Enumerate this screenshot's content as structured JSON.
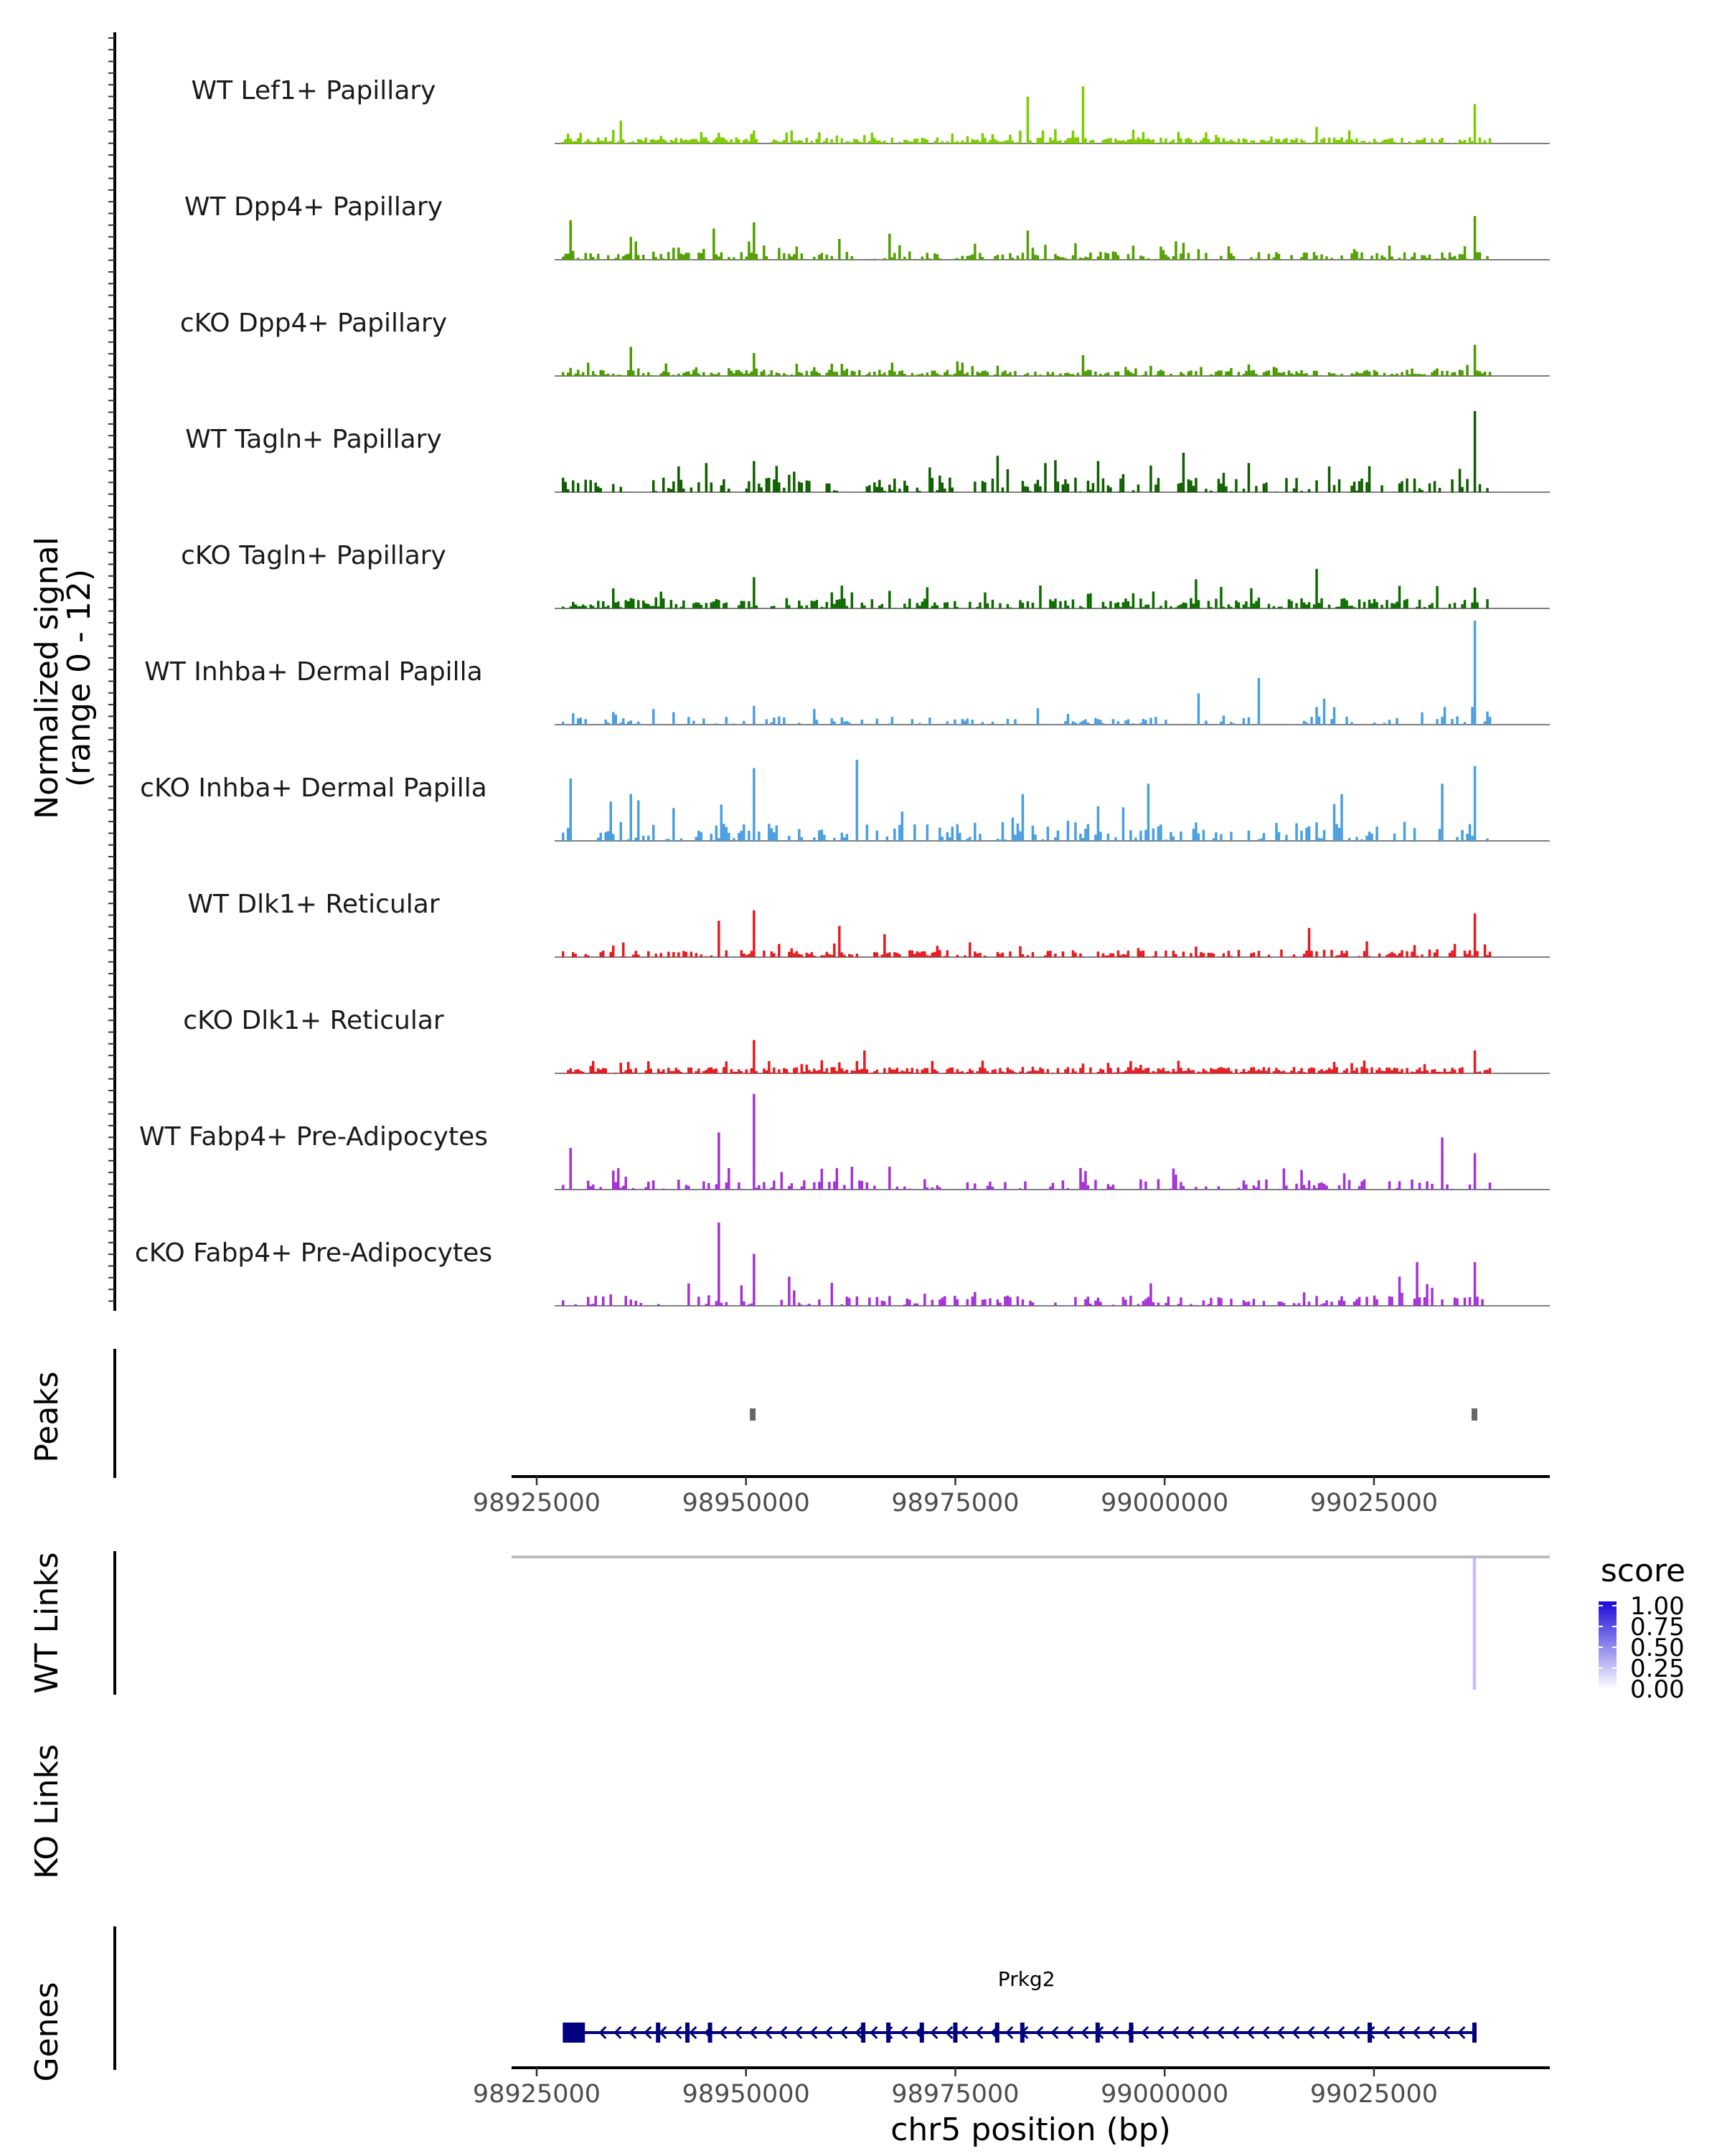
{
  "chart_data": {
    "type": "coverage-track",
    "shared_y_axis": {
      "label_line1": "Normalized signal",
      "label_line2": "(range 0 - 12)",
      "range": [
        0,
        12
      ]
    },
    "x_axis": {
      "chromosome": "chr5",
      "label": "chr5 position (bp)",
      "range": [
        98922000,
        99046000
      ],
      "ticks": [
        98925000,
        98950000,
        98975000,
        99000000,
        99025000
      ],
      "tick_labels": [
        "98925000",
        "98950000",
        "98975000",
        "99000000",
        "99025000"
      ]
    },
    "region_data_range": [
      98928000,
      99039000
    ],
    "tracks": [
      {
        "name": "WT Lef1+ Papillary",
        "color": "#7ccd00",
        "seed": 11,
        "density": 0.85,
        "base": 0.06,
        "peaks": [
          [
            98935000,
            0.22
          ],
          [
            98950800,
            0.12
          ],
          [
            98978000,
            0.1
          ],
          [
            98983500,
            0.45
          ],
          [
            98990000,
            0.55
          ],
          [
            98986800,
            0.14
          ],
          [
            99018000,
            0.16
          ],
          [
            99037000,
            0.38
          ]
        ]
      },
      {
        "name": "WT Dpp4+ Papillary",
        "color": "#52a000",
        "seed": 23,
        "density": 0.55,
        "base": 0.08,
        "peaks": [
          [
            98929000,
            0.38
          ],
          [
            98936000,
            0.22
          ],
          [
            98946000,
            0.3
          ],
          [
            98950800,
            0.36
          ],
          [
            98961000,
            0.2
          ],
          [
            98967000,
            0.25
          ],
          [
            98983500,
            0.28
          ],
          [
            99037000,
            0.42
          ]
        ]
      },
      {
        "name": "cKO Dpp4+ Papillary",
        "color": "#4a9a00",
        "seed": 37,
        "density": 0.8,
        "base": 0.06,
        "peaks": [
          [
            98936000,
            0.28
          ],
          [
            98950800,
            0.22
          ],
          [
            98975000,
            0.14
          ],
          [
            98990000,
            0.2
          ],
          [
            99037000,
            0.3
          ]
        ]
      },
      {
        "name": "WT Tagln+ Papillary",
        "color": "#0f5f00",
        "seed": 41,
        "density": 0.45,
        "base": 0.14,
        "peaks": [
          [
            98945000,
            0.28
          ],
          [
            98950800,
            0.3
          ],
          [
            98980000,
            0.35
          ],
          [
            98985500,
            0.28
          ],
          [
            98992000,
            0.3
          ],
          [
            99002000,
            0.38
          ],
          [
            99010000,
            0.28
          ],
          [
            99037000,
            0.78
          ]
        ]
      },
      {
        "name": "cKO Tagln+ Papillary",
        "color": "#0d6b00",
        "seed": 53,
        "density": 0.6,
        "base": 0.1,
        "peaks": [
          [
            98950800,
            0.3
          ],
          [
            98985000,
            0.22
          ],
          [
            99003500,
            0.28
          ],
          [
            99018000,
            0.38
          ],
          [
            99037000,
            0.2
          ]
        ]
      },
      {
        "name": "WT Inhba+ Dermal Papilla",
        "color": "#4a9fdf",
        "seed": 67,
        "density": 0.35,
        "base": 0.08,
        "peaks": [
          [
            98950800,
            0.18
          ],
          [
            99004000,
            0.3
          ],
          [
            99011000,
            0.45
          ],
          [
            99019000,
            0.25
          ],
          [
            99037000,
            1.0
          ]
        ]
      },
      {
        "name": "cKO Inhba+ Dermal Papilla",
        "color": "#4a9fdf",
        "seed": 79,
        "density": 0.4,
        "base": 0.18,
        "peaks": [
          [
            98929000,
            0.6
          ],
          [
            98936000,
            0.45
          ],
          [
            98947000,
            0.35
          ],
          [
            98950800,
            0.7
          ],
          [
            98963000,
            0.78
          ],
          [
            98983000,
            0.45
          ],
          [
            98998000,
            0.55
          ],
          [
            99021000,
            0.45
          ],
          [
            99033000,
            0.55
          ],
          [
            99037000,
            0.72
          ]
        ]
      },
      {
        "name": "WT Dlk1+ Reticular",
        "color": "#e8191f",
        "seed": 83,
        "density": 0.55,
        "base": 0.07,
        "peaks": [
          [
            98946500,
            0.35
          ],
          [
            98950800,
            0.45
          ],
          [
            98961000,
            0.3
          ],
          [
            98966500,
            0.22
          ],
          [
            99017000,
            0.28
          ],
          [
            99037000,
            0.42
          ]
        ]
      },
      {
        "name": "cKO Dlk1+ Reticular",
        "color": "#e8191f",
        "seed": 97,
        "density": 0.9,
        "base": 0.06,
        "peaks": [
          [
            98950800,
            0.32
          ],
          [
            98964000,
            0.22
          ],
          [
            99037000,
            0.22
          ]
        ]
      },
      {
        "name": "WT Fabp4+ Pre-Adipocytes",
        "color": "#a531d8",
        "seed": 101,
        "density": 0.35,
        "base": 0.1,
        "peaks": [
          [
            98929000,
            0.4
          ],
          [
            98946500,
            0.55
          ],
          [
            98950800,
            0.92
          ],
          [
            98959000,
            0.2
          ],
          [
            98962500,
            0.22
          ],
          [
            98967000,
            0.22
          ],
          [
            99033000,
            0.5
          ],
          [
            99037000,
            0.35
          ]
        ]
      },
      {
        "name": "cKO Fabp4+ Pre-Adipocytes",
        "color": "#a531d8",
        "seed": 113,
        "density": 0.4,
        "base": 0.1,
        "peaks": [
          [
            98946500,
            0.8
          ],
          [
            98950800,
            0.5
          ],
          [
            98955000,
            0.28
          ],
          [
            98960000,
            0.22
          ],
          [
            99028000,
            0.28
          ],
          [
            99030000,
            0.42
          ],
          [
            99037000,
            0.42
          ],
          [
            99039000,
            0.3
          ]
        ]
      }
    ],
    "peaks_track": {
      "label": "Peaks",
      "regions": [
        98950800,
        99037000
      ]
    },
    "links_tracks": [
      {
        "label": "WT Links",
        "links": [
          {
            "start": 99037000,
            "end": 99037000,
            "score": 0.25
          }
        ]
      },
      {
        "label": "KO Links",
        "links": []
      }
    ],
    "legend": {
      "title": "score",
      "ticks": [
        "1.00",
        "0.75",
        "0.50",
        "0.25",
        "0.00"
      ],
      "low_color": "#ffffff",
      "high_color": "#1a0bd9"
    },
    "genes_track": {
      "label": "Genes",
      "genes": [
        {
          "name": "Prkg2",
          "start": 98930000,
          "end": 99037000,
          "strand": "-",
          "color": "#000080",
          "exons": [
            98930500,
            98939500,
            98943000,
            98945700,
            98964000,
            98967000,
            98971000,
            98975000,
            98980000,
            98983000,
            98992000,
            98996000,
            99024500,
            99037000
          ]
        }
      ]
    }
  }
}
